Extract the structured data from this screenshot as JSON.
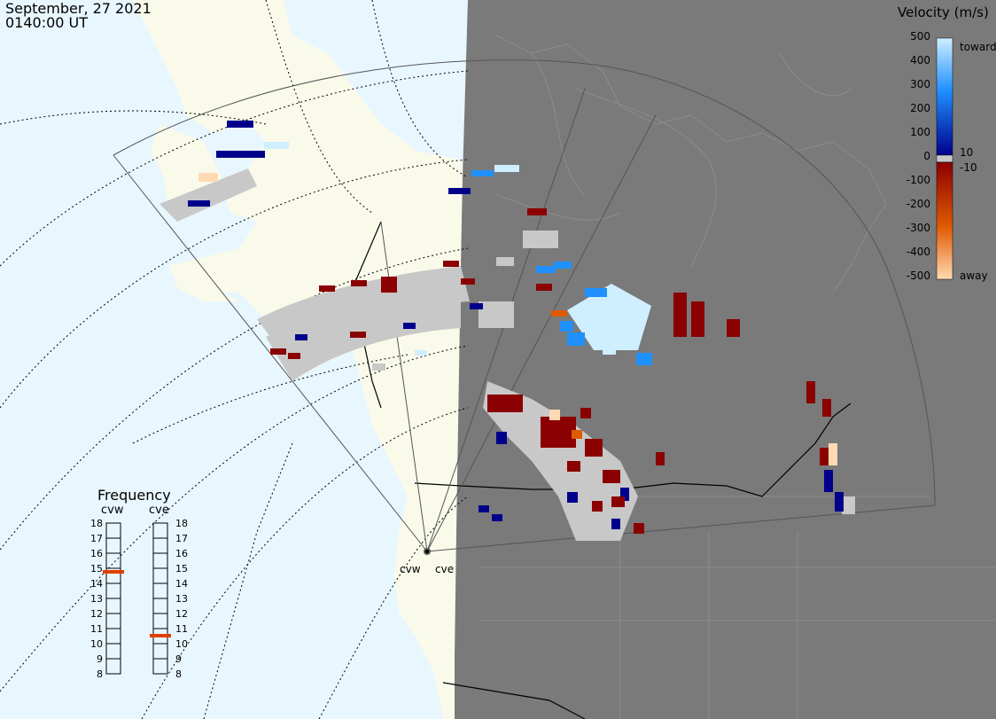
{
  "header": {
    "date": "September, 27 2021",
    "time": "0140:00 UT"
  },
  "velocity_scale": {
    "title": "Velocity (m/s)",
    "ticks": [
      "500",
      "400",
      "300",
      "200",
      "100",
      "10",
      "0",
      "-10",
      "-100",
      "-200",
      "-300",
      "-400",
      "-500"
    ],
    "toward_label": "toward",
    "away_label": "away",
    "colors": {
      "toward_light": "#cfeeff",
      "toward_mid": "#1e90ff",
      "toward_dark": "#00008b",
      "zero": "#c8c8c8",
      "away_dark": "#8b0000",
      "away_mid": "#e05a00",
      "away_light": "#ffd9b3"
    }
  },
  "frequency_panel": {
    "title": "Frequency",
    "radars": [
      "cvw",
      "cve"
    ],
    "scale": [
      "18",
      "17",
      "16",
      "15",
      "14",
      "13",
      "12",
      "11",
      "10",
      "9",
      "8"
    ],
    "selected": {
      "cvw": 15,
      "cve": 10.5
    },
    "indicator_color": "#e04000"
  },
  "sites": [
    {
      "code": "cvw",
      "label": "cvw"
    },
    {
      "code": "cve",
      "label": "cve"
    }
  ],
  "map_colors": {
    "ocean": "#e8f6fe",
    "land": "#fafaeb",
    "night_shade": "#7a7a7a",
    "ground_scatter": "#c8c8c8"
  }
}
